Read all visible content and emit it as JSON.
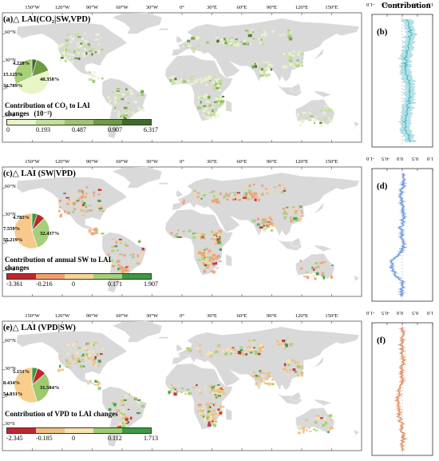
{
  "side_title": "Contribution",
  "lon_labels": [
    "150°W",
    "120°W",
    "90°W",
    "60°W",
    "30°W",
    "0°",
    "30°E",
    "60°E",
    "90°E",
    "120°E",
    "150°E"
  ],
  "lat_labels": [
    "60°N",
    "30°N",
    "0°",
    "30°S"
  ],
  "side_axis": [
    "-1.0",
    "-0.5",
    "0.0",
    "0.5",
    "1.0"
  ],
  "panels": [
    {
      "title": "(a)△ LAI(CO₂|SW,VPD)",
      "side_label": "(b)",
      "cbar_title": "Contribution of CO₂ to LAI changes",
      "cbar_unit": "(10⁻²)",
      "cbar_ticks": [
        "0",
        "0.193",
        "0.487",
        "0.907",
        "6.317"
      ],
      "cbar_colors": [
        "#e8f5c8",
        "#c2e096",
        "#9dc56a",
        "#6f9a45",
        "#3f6b2a"
      ],
      "pie_labels": [
        "4.228%",
        "15.125%",
        "48.358%",
        "31.789%"
      ],
      "pie_values": [
        4.228,
        15.125,
        48.358,
        31.789
      ],
      "pie_colors": [
        "#3f6b2a",
        "#6f9a45",
        "#e8f5c8",
        "#a8cf7a"
      ],
      "side_color": "#2aa8b8"
    },
    {
      "title": "(c)△ LAI (SW|VPD)",
      "side_label": "(d)",
      "cbar_title": "Contribution of annual SW to LAI changes",
      "cbar_unit": "",
      "cbar_ticks": [
        "-3.361",
        "-0.216",
        "0",
        "0.171",
        "1.907"
      ],
      "cbar_colors": [
        "#c0272d",
        "#f0a070",
        "#f8d49a",
        "#a4d07a",
        "#3c9a40"
      ],
      "pie_labels": [
        "4.785%",
        "7.559%",
        "32.437%",
        "55.219%"
      ],
      "pie_values": [
        4.785,
        7.559,
        32.437,
        55.219
      ],
      "pie_colors": [
        "#3c9a40",
        "#c0272d",
        "#a4d07a",
        "#f8c98a"
      ],
      "side_color": "#4a7fd8"
    },
    {
      "title": "(e)△ LAI (VPD|SW)",
      "side_label": "(f)",
      "cbar_title": "Contribution of VPD to LAI changes",
      "cbar_unit": "",
      "cbar_ticks": [
        "-2.345",
        "-0.185",
        "0",
        "0.112",
        "1.713"
      ],
      "cbar_colors": [
        "#c0272d",
        "#f0c080",
        "#f8e4b0",
        "#9ccc6e",
        "#3c9a40"
      ],
      "pie_labels": [
        "5.151%",
        "8.434%",
        "31.584%",
        "54.831%"
      ],
      "pie_values": [
        5.151,
        8.434,
        31.584,
        54.831
      ],
      "pie_colors": [
        "#3c9a40",
        "#c0272d",
        "#9ccc6e",
        "#f8cf8a"
      ],
      "side_color": "#d8743a"
    }
  ],
  "chart_data": [
    {
      "type": "pie",
      "title": "(a)△ LAI(CO₂|SW,VPD)",
      "values": [
        4.228,
        15.125,
        48.358,
        31.789
      ],
      "labels": [
        "4.228%",
        "15.125%",
        "48.358%",
        "31.789%"
      ]
    },
    {
      "type": "pie",
      "title": "(c)△ LAI (SW|VPD)",
      "values": [
        4.785,
        7.559,
        32.437,
        55.219
      ],
      "labels": [
        "4.785%",
        "7.559%",
        "32.437%",
        "55.219%"
      ]
    },
    {
      "type": "pie",
      "title": "(e)△ LAI (VPD|SW)",
      "values": [
        5.151,
        8.434,
        31.584,
        54.831
      ],
      "labels": [
        "5.151%",
        "8.434%",
        "31.584%",
        "54.831%"
      ]
    },
    {
      "type": "line",
      "title": "(b)",
      "xlabel": "Contribution",
      "xlim": [
        -1.0,
        1.0
      ],
      "ylim": [
        -60,
        90
      ]
    },
    {
      "type": "line",
      "title": "(d)",
      "xlabel": "Contribution",
      "xlim": [
        -1.0,
        1.0
      ],
      "ylim": [
        -60,
        90
      ]
    },
    {
      "type": "line",
      "title": "(f)",
      "xlabel": "Contribution",
      "xlim": [
        -1.0,
        1.0
      ],
      "ylim": [
        -60,
        90
      ]
    }
  ]
}
